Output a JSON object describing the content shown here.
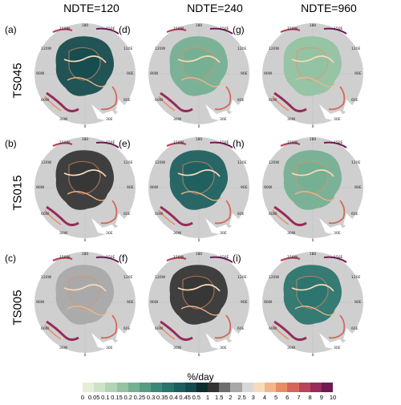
{
  "columns": [
    "NDTE=120",
    "NDTE=240",
    "NDTE=960"
  ],
  "rows": [
    "TS045",
    "TS015",
    "TS005"
  ],
  "panel_labels": [
    "(a)",
    "(d)",
    "(g)",
    "(b)",
    "(e)",
    "(h)",
    "(c)",
    "(f)",
    "(i)"
  ],
  "map_labels": {
    "top": "180",
    "bottom": "0",
    "left": "90W",
    "right": "90E",
    "ul1": "150W",
    "ul2": "120W",
    "ur1": "150E",
    "ur2": "120E",
    "ll1": "60W",
    "ll2": "30W",
    "lr1": "60E",
    "lr2": "30E"
  },
  "colorbar": {
    "unit": "%/day",
    "ticks": [
      "0",
      "0.05",
      "0.1",
      "0.15",
      "0.2",
      "0.25",
      "0.3",
      "0.35",
      "0.4",
      "0.45",
      "0.5",
      "1",
      "1.5",
      "2",
      "2.5",
      "3",
      "4",
      "5",
      "6",
      "7",
      "8",
      "9",
      "10"
    ],
    "colors": [
      "#e6eed8",
      "#cfe2c6",
      "#b2d3b4",
      "#93c3a2",
      "#74b092",
      "#569c83",
      "#3c8877",
      "#28736b",
      "#1b5e5d",
      "#134a4c",
      "#0d2d2e",
      "#333333",
      "#6e6e6e",
      "#a8a8a8",
      "#d8d8d8",
      "#f6dcbc",
      "#f2b68a",
      "#e68d66",
      "#d4675a",
      "#b9445a",
      "#972b5a",
      "#701b53"
    ]
  }
}
